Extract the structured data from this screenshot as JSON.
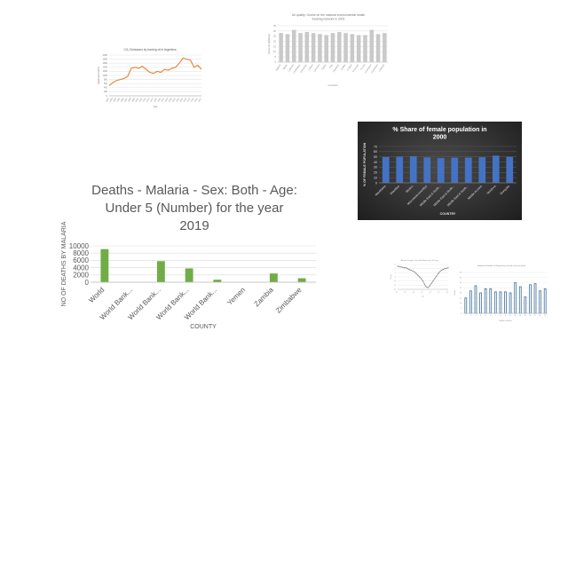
{
  "chart_data": [
    {
      "type": "line",
      "title": "CO₂ Emissions by burning oil in Argentina",
      "xlabel": "Year",
      "ylabel": "Metric tons (MMT)",
      "ylim": [
        0,
        2000
      ],
      "yticks": [
        "2000",
        "1800",
        "1600",
        "1400",
        "1200",
        "1000",
        "800",
        "600",
        "400",
        "200",
        "0"
      ],
      "color": "#ed7d31",
      "x": [
        1992,
        1993,
        1994,
        1995,
        1996,
        1997,
        1998,
        1999,
        2000,
        2001,
        2002,
        2003,
        2004,
        2005,
        2006,
        2007,
        2008,
        2009,
        2010,
        2011,
        2012,
        2013,
        2014,
        2015,
        2016,
        2017
      ],
      "values": [
        500,
        650,
        750,
        800,
        850,
        950,
        1350,
        1400,
        1350,
        1450,
        1300,
        1150,
        1100,
        1200,
        1150,
        1300,
        1250,
        1350,
        1400,
        1600,
        1850,
        1800,
        1750,
        1400,
        1500,
        1300
      ],
      "grid": true
    },
    {
      "type": "bar",
      "title": "Air quality: Ozone on the national environmental health tracking network in 2002",
      "xlabel": "Countries",
      "ylabel": "Ozone (in ppb/hour)",
      "ylim": [
        0,
        35
      ],
      "yticks": [
        "35",
        "30",
        "25",
        "20",
        "15",
        "10",
        "5",
        "0"
      ],
      "color": "#c9c9c9",
      "categories": [
        "Bullock",
        "Butler",
        "Calhoun",
        "Chambers",
        "Cherokee",
        "Chilton",
        "Choctaw",
        "Clarke",
        "Clay",
        "Cleburne",
        "Coffee",
        "Colbert",
        "Conecuh",
        "Coosa",
        "Covington",
        "Crenshaw",
        "Cullman"
      ],
      "values": [
        28,
        27,
        31,
        28,
        29,
        28,
        27,
        26,
        28,
        29,
        28,
        27,
        26,
        26,
        31,
        27,
        28
      ],
      "grid": true
    },
    {
      "type": "bar",
      "title": "% Share of female population in 2000",
      "xlabel": "COUNTRY",
      "ylabel": "% OF FEMALE POPULATION",
      "ylim": [
        0,
        70
      ],
      "yticks": [
        "70",
        "60",
        "50",
        "40",
        "30",
        "20",
        "10",
        "0"
      ],
      "color": "#4472c4",
      "categories": [
        "Mauritania",
        "Mauritius",
        "Mexico",
        "Micronesia (country)",
        "Middle East & North...",
        "Middle East & North...",
        "Middle East & North...",
        "Middle income",
        "Moldova",
        "Mongolia"
      ],
      "values": [
        49.6,
        50.5,
        51.2,
        49.0,
        47.5,
        48.5,
        48.6,
        49.3,
        52.3,
        50.2
      ],
      "grid": true
    },
    {
      "type": "bar",
      "title": "Deaths - Malaria - Sex: Both - Age: Under 5 (Number) for the year 2019",
      "xlabel": "COUNTY",
      "ylabel": "NO OF DEATHS BY MALARIA",
      "ylim": [
        0,
        10000
      ],
      "yticks": [
        "10000",
        "8000",
        "6000",
        "4000",
        "2000",
        "0"
      ],
      "color": "#70ad47",
      "categories": [
        "World",
        "World Bank...",
        "World Bank...",
        "World Bank...",
        "World Bank...",
        "Yemen",
        "Zambia",
        "Zimbabwe"
      ],
      "values": [
        9100,
        0,
        5800,
        3800,
        700,
        0,
        2400,
        1100
      ],
      "grid": true
    },
    {
      "type": "line",
      "title": "Annual change in the total Women per 100 men",
      "xlabel": "Year",
      "ylabel": "Change",
      "ylim": [
        -20,
        10
      ],
      "yticks": [
        "10",
        "5",
        "0",
        "-5",
        "-10",
        "-15",
        "-20"
      ],
      "color": "#7f7f7f",
      "x": [
        1990,
        1991,
        1992,
        1993,
        1994,
        1995,
        1996,
        1997,
        1998,
        1999,
        2000,
        2001,
        2002,
        2003,
        2004,
        2005,
        2006,
        2007,
        2008,
        2009,
        2010,
        2011,
        2012,
        2013,
        2014,
        2015,
        2016,
        2017,
        2018,
        2019,
        2020
      ],
      "values": [
        8,
        7.5,
        7,
        6.5,
        6,
        6,
        5,
        4,
        3,
        2,
        1,
        -1,
        -3,
        -5,
        -7,
        -10,
        -14,
        -17,
        -18,
        -16,
        -13,
        -10,
        -7,
        -4,
        -1,
        1,
        3,
        4,
        5,
        5.5,
        6
      ],
      "grid": true
    },
    {
      "type": "bar",
      "title": "Number of deaths in Guyana by sex and cause of death",
      "xlabel": "Number of deaths",
      "ylabel": "Deaths",
      "ylim": [
        0,
        40
      ],
      "yticks": [
        "40",
        "35",
        "30",
        "25",
        "20",
        "15",
        "10",
        "5",
        "0"
      ],
      "color": "#41719c",
      "categories": [
        "1",
        "2",
        "3",
        "4",
        "5",
        "6",
        "7",
        "8",
        "9",
        "10",
        "11",
        "12",
        "13",
        "14",
        "15",
        "16",
        "17"
      ],
      "values": [
        15,
        22,
        27,
        20,
        24,
        24,
        21,
        21,
        21,
        20,
        30,
        26,
        16,
        28,
        29,
        22,
        24
      ],
      "grid": true
    }
  ]
}
